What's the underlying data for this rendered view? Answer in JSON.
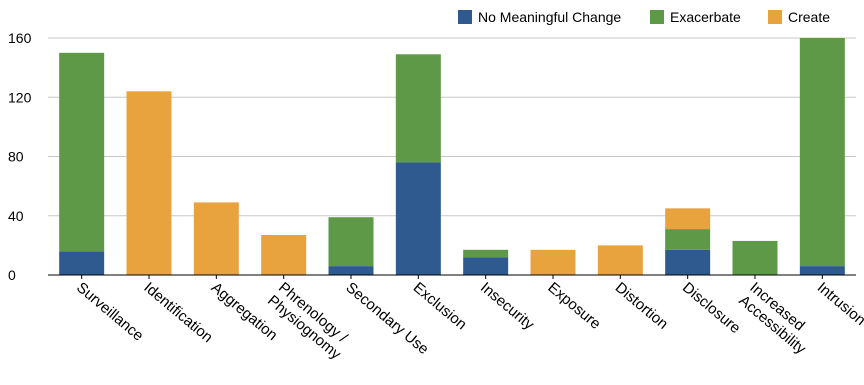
{
  "chart_data": {
    "type": "bar",
    "stacked": true,
    "categories": [
      "Surveillance",
      "Identification",
      "Aggregation",
      "Phrenology / Physiognomy",
      "Secondary Use",
      "Exclusion",
      "Insecurity",
      "Exposure",
      "Distortion",
      "Disclosure",
      "Increased Accessibility",
      "Intrusion"
    ],
    "category_lines": [
      [
        "Surveillance"
      ],
      [
        "Identification"
      ],
      [
        "Aggregation"
      ],
      [
        "Phrenology /",
        "Physiognomy"
      ],
      [
        "Secondary Use"
      ],
      [
        "Exclusion"
      ],
      [
        "Insecurity"
      ],
      [
        "Exposure"
      ],
      [
        "Distortion"
      ],
      [
        "Disclosure"
      ],
      [
        "Increased",
        "Accessibility"
      ],
      [
        "Intrusion"
      ]
    ],
    "series": [
      {
        "name": "No Meaningful Change",
        "color": "#2e5a8f",
        "values": [
          16,
          0,
          0,
          0,
          6,
          76,
          12,
          0,
          0,
          17,
          0,
          6
        ]
      },
      {
        "name": "Exacerbate",
        "color": "#5e9947",
        "values": [
          134,
          0,
          0,
          0,
          33,
          73,
          5,
          0,
          0,
          14,
          23,
          154
        ]
      },
      {
        "name": "Create",
        "color": "#e8a33e",
        "values": [
          0,
          124,
          49,
          27,
          0,
          0,
          0,
          17,
          20,
          14,
          0,
          0
        ]
      }
    ],
    "yticks": [
      "0",
      "40",
      "80",
      "120",
      "160"
    ],
    "ylim": [
      0,
      160
    ],
    "title": "",
    "xlabel": "",
    "ylabel": "",
    "legend_position": "top-right",
    "grid": true
  }
}
